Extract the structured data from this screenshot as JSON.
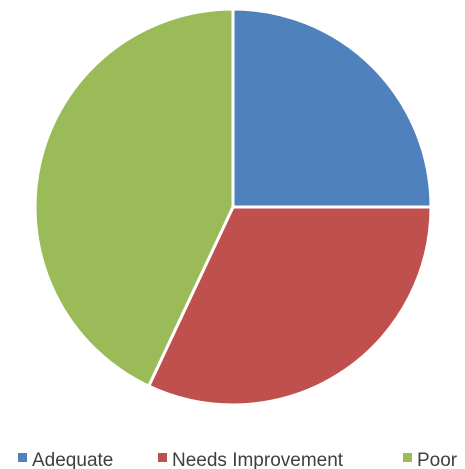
{
  "chart_data": {
    "type": "pie",
    "title": "",
    "categories": [
      "Adequate",
      "Needs Improvement",
      "Poor"
    ],
    "values": [
      25,
      32,
      43
    ],
    "colors": [
      "#4f81bd",
      "#c0504d",
      "#9bbb59"
    ],
    "start_angle_deg": 0,
    "direction": "clockwise",
    "legend_position": "bottom",
    "legend": [
      {
        "label": "Adequate",
        "color": "#4f81bd"
      },
      {
        "label": "Needs Improvement",
        "color": "#c0504d"
      },
      {
        "label": "Poor",
        "color": "#9bbb59"
      }
    ]
  }
}
